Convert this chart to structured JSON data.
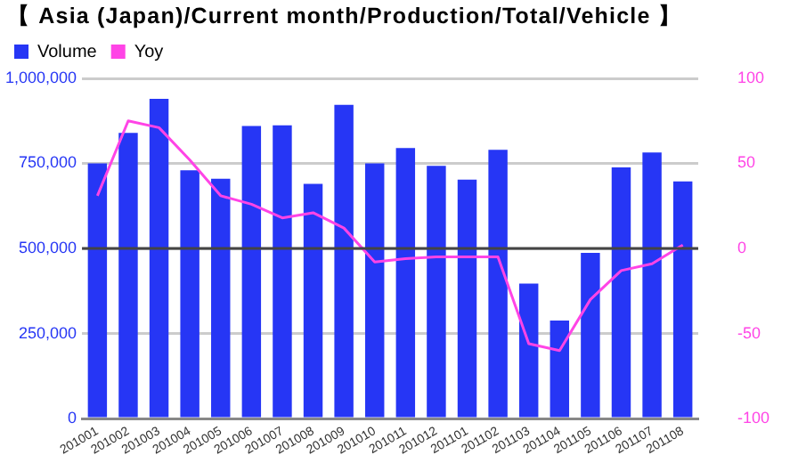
{
  "chart_data": {
    "type": "bar",
    "title": "【 Asia (Japan)/Current month/Production/Total/Vehicle 】",
    "categories": [
      "201001",
      "201002",
      "201003",
      "201004",
      "201005",
      "201006",
      "201007",
      "201008",
      "201009",
      "201010",
      "201011",
      "201012",
      "201101",
      "201102",
      "201103",
      "201104",
      "201105",
      "201106",
      "201107",
      "201108"
    ],
    "series": [
      {
        "name": "Volume",
        "color": "#2636f5",
        "values": [
          750000,
          840000,
          940000,
          730000,
          705000,
          860000,
          862000,
          690000,
          922000,
          750000,
          795000,
          743000,
          702000,
          790000,
          397000,
          288000,
          487000,
          738000,
          782000,
          697000
        ]
      },
      {
        "name": "Yoy",
        "type": "line",
        "axis": "y2",
        "color": "#ff44e6",
        "values": [
          31,
          75,
          71,
          52,
          31,
          26,
          18,
          21,
          12,
          -8,
          -6,
          -5,
          -5,
          -5,
          -56,
          -60,
          -30,
          -13,
          -9,
          2
        ]
      }
    ],
    "ylim": [
      0,
      1000000
    ],
    "yticks": [
      {
        "value": 0,
        "label": "0"
      },
      {
        "value": 250000,
        "label": "250,000"
      },
      {
        "value": 500000,
        "label": "500,000"
      },
      {
        "value": 750000,
        "label": "750,000"
      },
      {
        "value": 1000000,
        "label": "1,000,000"
      }
    ],
    "y2lim": [
      -100,
      100
    ],
    "y2ticks": [
      -100,
      -50,
      0,
      50,
      100
    ],
    "ref_lines": [
      {
        "axis": "y2",
        "value": 0,
        "color": "#444444"
      }
    ],
    "grid": "y",
    "legend": "top left",
    "marker": "none"
  }
}
